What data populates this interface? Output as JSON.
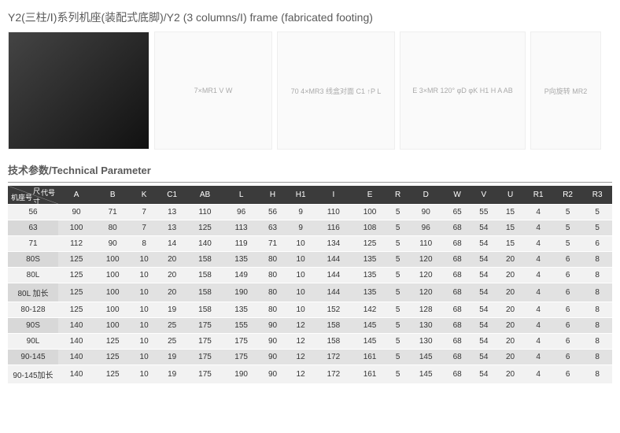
{
  "title": "Y2(三柱/Ⅰ)系列机座(装配式底脚)/Y2 (3 columns/I) frame (fabricated footing)",
  "subtitle": "技术参数/Technical Parameter",
  "diagrams": {
    "photo_alt": "Motor frame photo",
    "d1_caption": "7×MR1  V  W",
    "d2_caption": "70  4×MR3 线盒对面  C1 ↑P  L",
    "d3_caption": "E  3×MR  120°  φD  φK  H1  H  A  AB",
    "d4_caption": "P向旋转  MR2"
  },
  "header_cell": {
    "top": "代号",
    "bottom": "机座号",
    "mid": "尺寸"
  },
  "columns": [
    "A",
    "B",
    "K",
    "C1",
    "AB",
    "L",
    "H",
    "H1",
    "I",
    "E",
    "R",
    "D",
    "W",
    "V",
    "U",
    "R1",
    "R2",
    "R3"
  ],
  "rows": [
    {
      "label": "56",
      "v": [
        90,
        71,
        7,
        13,
        110,
        96,
        56,
        9,
        110,
        100,
        5,
        90,
        65,
        55,
        15,
        4,
        5,
        5
      ]
    },
    {
      "label": "63",
      "v": [
        100,
        80,
        7,
        13,
        125,
        113,
        63,
        9,
        116,
        108,
        5,
        96,
        68,
        54,
        15,
        4,
        5,
        5
      ]
    },
    {
      "label": "71",
      "v": [
        112,
        90,
        8,
        14,
        140,
        119,
        71,
        10,
        134,
        125,
        5,
        110,
        68,
        54,
        15,
        4,
        5,
        6
      ]
    },
    {
      "label": "80S",
      "v": [
        125,
        100,
        10,
        20,
        158,
        135,
        80,
        10,
        144,
        135,
        5,
        120,
        68,
        54,
        20,
        4,
        6,
        8
      ]
    },
    {
      "label": "80L",
      "v": [
        125,
        100,
        10,
        20,
        158,
        149,
        80,
        10,
        144,
        135,
        5,
        120,
        68,
        54,
        20,
        4,
        6,
        8
      ]
    },
    {
      "label": "80L 加长",
      "v": [
        125,
        100,
        10,
        20,
        158,
        190,
        80,
        10,
        144,
        135,
        5,
        120,
        68,
        54,
        20,
        4,
        6,
        8
      ]
    },
    {
      "label": "80-128",
      "v": [
        125,
        100,
        10,
        19,
        158,
        135,
        80,
        10,
        152,
        142,
        5,
        128,
        68,
        54,
        20,
        4,
        6,
        8
      ]
    },
    {
      "label": "90S",
      "v": [
        140,
        100,
        10,
        25,
        175,
        155,
        90,
        12,
        158,
        145,
        5,
        130,
        68,
        54,
        20,
        4,
        6,
        8
      ]
    },
    {
      "label": "90L",
      "v": [
        140,
        125,
        10,
        25,
        175,
        175,
        90,
        12,
        158,
        145,
        5,
        130,
        68,
        54,
        20,
        4,
        6,
        8
      ]
    },
    {
      "label": "90-145",
      "v": [
        140,
        125,
        10,
        19,
        175,
        175,
        90,
        12,
        172,
        161,
        5,
        145,
        68,
        54,
        20,
        4,
        6,
        8
      ]
    },
    {
      "label": "90-145加长",
      "v": [
        140,
        125,
        10,
        19,
        175,
        190,
        90,
        12,
        172,
        161,
        5,
        145,
        68,
        54,
        20,
        4,
        6,
        8
      ]
    }
  ],
  "colors": {
    "header_bg": "#3b3b3b",
    "row_odd": "#f2f2f2",
    "row_even": "#e2e2e2"
  }
}
